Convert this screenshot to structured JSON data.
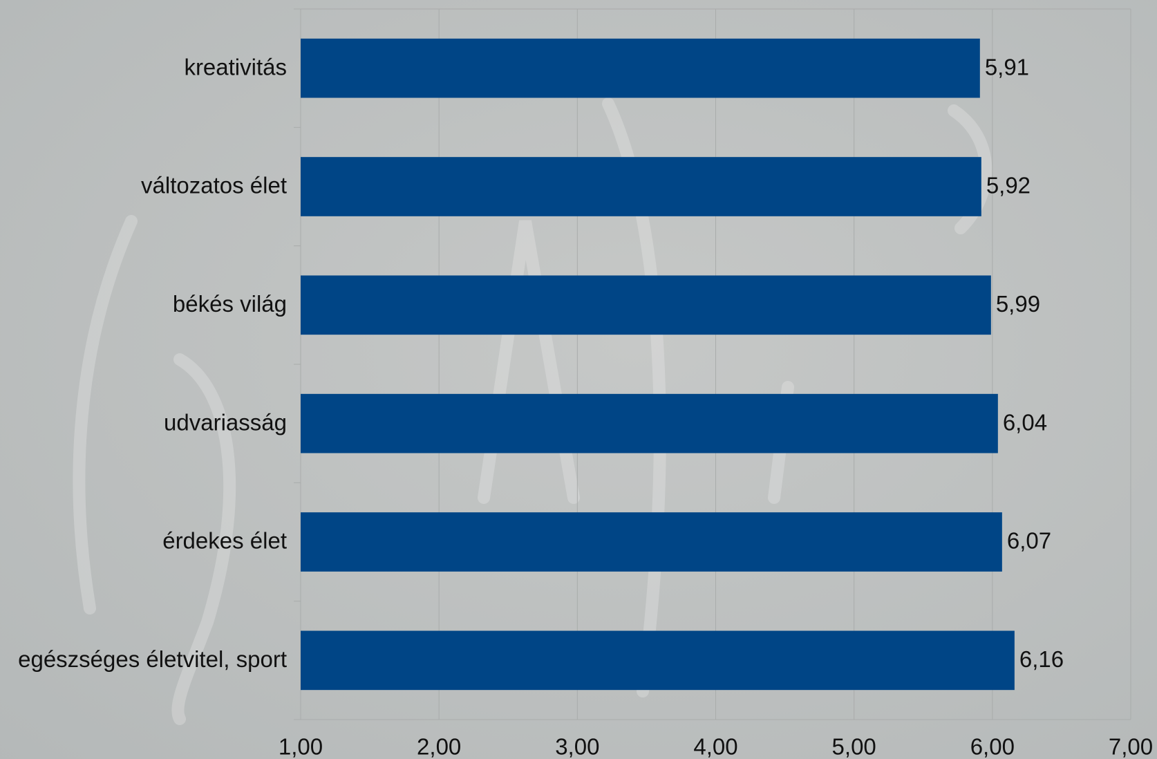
{
  "chart_data": {
    "type": "bar",
    "orientation": "horizontal",
    "categories": [
      "kreativitás",
      "változatos élet",
      "békés világ",
      "udvariasság",
      "érdekes élet",
      "egészséges életvitel, sport"
    ],
    "values": [
      5.91,
      5.92,
      5.99,
      6.04,
      6.07,
      6.16
    ],
    "value_labels": [
      "5,91",
      "5,92",
      "5,99",
      "6,04",
      "6,07",
      "6,16"
    ],
    "color": "#004586",
    "xlim": [
      1,
      7
    ],
    "xticks": [
      {
        "value": 1,
        "label": "1,00"
      },
      {
        "value": 2,
        "label": "2,00"
      },
      {
        "value": 3,
        "label": "3,00"
      },
      {
        "value": 4,
        "label": "4,00"
      },
      {
        "value": 5,
        "label": "5,00"
      },
      {
        "value": 6,
        "label": "6,00"
      },
      {
        "value": 7,
        "label": "7,00"
      }
    ],
    "grid": true
  }
}
